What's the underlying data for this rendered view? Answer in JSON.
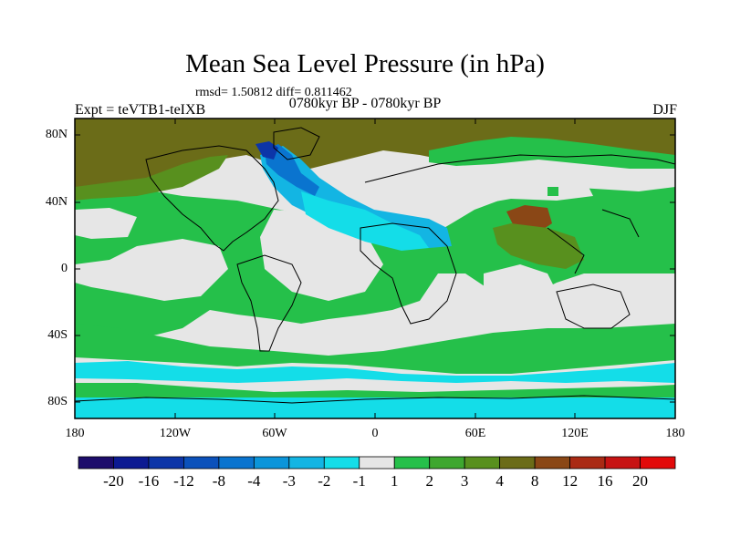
{
  "title": "Mean Sea Level Pressure (in hPa)",
  "stats": "rmsd= 1.50812 diff= 0.811462",
  "subtitle": "0780kyr BP - 0780kyr BP",
  "experiment": "Expt = teVTB1-teIXB",
  "season": "DJF",
  "lat_labels": [
    "80N",
    "40N",
    "0",
    "40S",
    "80S"
  ],
  "lon_labels": [
    "180",
    "120W",
    "60W",
    "0",
    "60E",
    "120E",
    "180"
  ],
  "colorbar": {
    "labels": [
      "-20",
      "-16",
      "-12",
      "-8",
      "-4",
      "-3",
      "-2",
      "-1",
      "1",
      "2",
      "3",
      "4",
      "8",
      "12",
      "16",
      "20"
    ],
    "colors": [
      "#1d0c6b",
      "#0c1a92",
      "#0c35a8",
      "#0b51bb",
      "#0a74cf",
      "#0b95da",
      "#13b5e3",
      "#14dde8",
      "#e6e6e6",
      "#25c04a",
      "#3ea72f",
      "#58901e",
      "#6b6c18",
      "#8a4716",
      "#aa2a14",
      "#c71313",
      "#e20a0a"
    ]
  },
  "colors": {
    "neutral": "#e6e6e6",
    "green_light": "#25c04a",
    "green_mid": "#3ea72f",
    "olive": "#58901e",
    "brown": "#6b6c18",
    "brown_dark": "#8a4716",
    "cyan": "#14dde8",
    "blue_light": "#13b5e3",
    "blue_mid": "#0a74cf",
    "blue_dark": "#0c35a8"
  }
}
